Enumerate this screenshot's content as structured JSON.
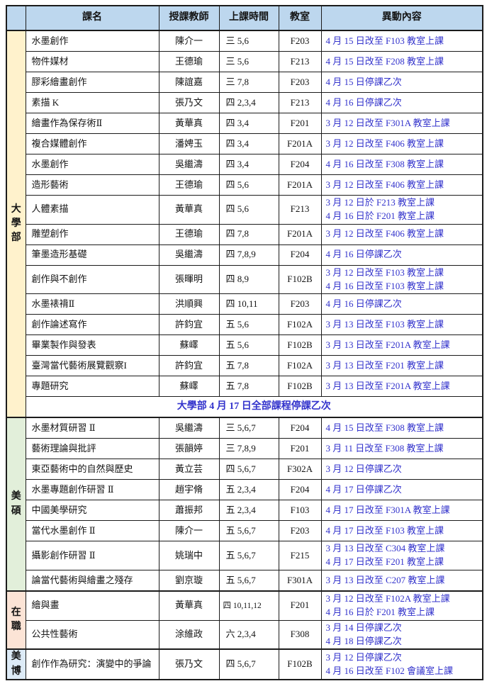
{
  "colors": {
    "header_bg": "#BDD7EE",
    "undergrad_bg": "#FFF2CC",
    "masters_bg": "#E2EFDA",
    "inservice_bg": "#FCE4D6",
    "phd_bg": "#DDEBF7",
    "change_text": "#3333CC",
    "border": "#1b1b1b"
  },
  "table": {
    "headers": [
      "課名",
      "授課教師",
      "上課時間",
      "教室",
      "異動內容"
    ],
    "sections": [
      {
        "label": "大學部",
        "bg": "#FFF2CC",
        "footer_note": "大學部 4 月 17 日全部課程停課乙次",
        "rows": [
          {
            "course": "水墨創作",
            "teacher": "陳介一",
            "time": "三 5,6",
            "room": "F203",
            "changes": [
              "4 月 15 日改至 F103 教室上課"
            ]
          },
          {
            "course": "物件媒材",
            "teacher": "王德瑜",
            "time": "三 5,6",
            "room": "F213",
            "changes": [
              "4 月 15 日改至 F208 教室上課"
            ]
          },
          {
            "course": "膠彩繪畫創作",
            "teacher": "陳誼嘉",
            "time": "三 7,8",
            "room": "F203",
            "changes": [
              "4 月 15 日停課乙次"
            ]
          },
          {
            "course": "素描 K",
            "teacher": "張乃文",
            "time": "四 2,3,4",
            "room": "F213",
            "changes": [
              "4 月 16 日停課乙次"
            ]
          },
          {
            "course": "繪畫作為保存術Ⅱ",
            "teacher": "黃華真",
            "time": "四 3,4",
            "room": "F201",
            "changes": [
              "3 月 12 日改至 F301A 教室上課"
            ]
          },
          {
            "course": "複合媒體創作",
            "teacher": "潘娉玉",
            "time": "四 3,4",
            "room": "F201A",
            "changes": [
              "3 月 12 日改至 F406 教室上課"
            ]
          },
          {
            "course": "水墨創作",
            "teacher": "吳繼濤",
            "time": "四 3,4",
            "room": "F204",
            "changes": [
              "4 月 16 日改至 F308 教室上課"
            ]
          },
          {
            "course": "造形藝術",
            "teacher": "王德瑜",
            "time": "四 5,6",
            "room": "F201A",
            "changes": [
              "3 月 12 日改至 F406 教室上課"
            ]
          },
          {
            "course": "人體素描",
            "teacher": "黃華真",
            "time": "四 5,6",
            "room": "F213",
            "changes": [
              "3 月 12 日於 F213 教室上課",
              "4 月 16 日於 F201 教室上課"
            ]
          },
          {
            "course": "雕塑創作",
            "teacher": "王德瑜",
            "time": "四 7,8",
            "room": "F201A",
            "changes": [
              "3 月 12 日改至 F406 教室上課"
            ]
          },
          {
            "course": "筆墨造形基礎",
            "teacher": "吳繼濤",
            "time": "四 7,8,9",
            "room": "F204",
            "changes": [
              "4 月 16 日停課乙次"
            ]
          },
          {
            "course": "創作與不創作",
            "teacher": "張暉明",
            "time": "四 8,9",
            "room": "F102B",
            "changes": [
              "3 月 12 日改至 F103 教室上課",
              "4 月 16 日改至 F103 教室上課"
            ]
          },
          {
            "course": "水墨裱褙Ⅱ",
            "teacher": "洪順興",
            "time": "四 10,11",
            "room": "F203",
            "changes": [
              "4 月 16 日停課乙次"
            ]
          },
          {
            "course": "創作論述寫作",
            "teacher": "許鈞宜",
            "time": "五 5,6",
            "room": "F102A",
            "changes": [
              "3 月 13 日改至 F103 教室上課"
            ]
          },
          {
            "course": "畢業製作與發表",
            "teacher": "蘇嶧",
            "time": "五 5,6",
            "room": "F102B",
            "changes": [
              "3 月 13 日改至 F201A 教室上課"
            ]
          },
          {
            "course": "臺灣當代藝術展覽觀察I",
            "teacher": "許鈞宜",
            "time": "五 7,8",
            "room": "F102A",
            "changes": [
              "3 月 13 日改至 F201 教室上課"
            ]
          },
          {
            "course": "專題研究",
            "teacher": "蘇嶧",
            "time": "五 7,8",
            "room": "F102B",
            "changes": [
              "3 月 13 日改至 F201A 教室上課"
            ]
          }
        ]
      },
      {
        "label": "美碩",
        "bg": "#E2EFDA",
        "rows": [
          {
            "course": "水墨材質研習 Ⅱ",
            "teacher": "吳繼濤",
            "time": "三 5,6,7",
            "room": "F204",
            "changes": [
              "4 月 15 日改至 F308 教室上課"
            ]
          },
          {
            "course": "藝術理論與批評",
            "teacher": "張韻婷",
            "time": "三 7,8,9",
            "room": "F201",
            "changes": [
              "3 月 11 日改至 F308 教室上課"
            ]
          },
          {
            "course": "東亞藝術中的自然與歷史",
            "teacher": "黃立芸",
            "time": "四 5,6,7",
            "room": "F302A",
            "changes": [
              "3 月 12 日停課乙次"
            ]
          },
          {
            "course": "水墨專題創作研習 Ⅱ",
            "teacher": "趙宇脩",
            "time": "五 2,3,4",
            "room": "F204",
            "changes": [
              "4 月 17 日停課乙次"
            ]
          },
          {
            "course": "中國美學研究",
            "teacher": "蕭振邦",
            "time": "五 2,3,4",
            "room": "F103",
            "changes": [
              "4 月 17 日改至 F301A 教室上課"
            ]
          },
          {
            "course": "當代水墨創作 Ⅱ",
            "teacher": "陳介一",
            "time": "五 5,6,7",
            "room": "F203",
            "changes": [
              "4 月 17 日改至 F103 教室上課"
            ]
          },
          {
            "course": "攝影創作研習 Ⅱ",
            "teacher": "姚瑞中",
            "time": "五 5,6,7",
            "room": "F215",
            "changes": [
              "3 月 13 日改至 C304 教室上課",
              "4 月 17 日改至 F201 教室上課"
            ]
          },
          {
            "course": "論當代藝術與繪畫之殘存",
            "teacher": "劉京璇",
            "time": "五 5,6,7",
            "room": "F301A",
            "changes": [
              "3 月 13 日改至 C207 教室上課"
            ]
          }
        ]
      },
      {
        "label": "在職",
        "bg": "#FCE4D6",
        "rows": [
          {
            "course": "繪與畫",
            "teacher": "黃華真",
            "time": "四 10,11,12",
            "room": "F201",
            "changes": [
              "3 月 12 日改至 F102A 教室上課",
              "4 月 16 日於 F201 教室上課"
            ]
          },
          {
            "course": "公共性藝術",
            "teacher": "涂維政",
            "time": "六 2,3,4",
            "room": "F308",
            "changes": [
              "3 月 14 日停課乙次",
              "4 月 18 日停課乙次"
            ]
          }
        ]
      },
      {
        "label": "美博",
        "bg": "#DDEBF7",
        "rows": [
          {
            "course": "創作作為研究：演變中的爭論",
            "teacher": "張乃文",
            "time": "四 5,6,7",
            "room": "F102B",
            "changes": [
              "3 月 12 日停課乙次",
              "4 月 16 日改至 F102 會議室上課"
            ]
          }
        ]
      }
    ]
  }
}
